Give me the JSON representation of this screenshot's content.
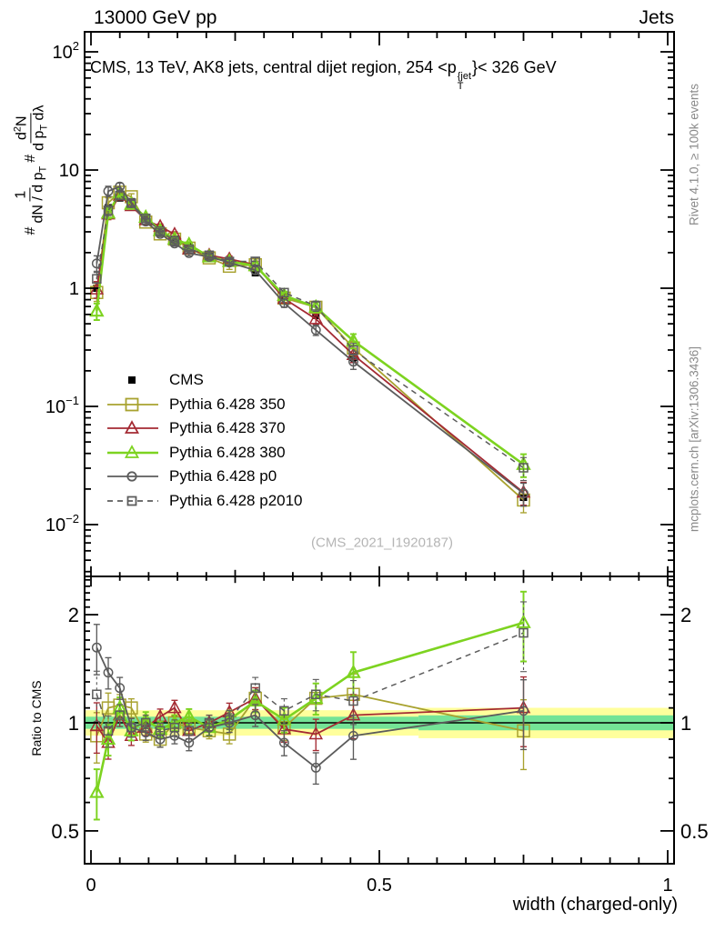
{
  "header": {
    "left": "13000 GeV pp",
    "right": "Jets"
  },
  "title": {
    "prefix": "CMS, 13 TeV, AK8 jets, central dijet region, 254 <p",
    "sup": "{jet",
    "sub": "T",
    "suffix": "}< 326 GeV"
  },
  "ylabel": {
    "h1": "#",
    "f1num": "1",
    "f1den_a": "dN / d p",
    "f1den_sub": "T",
    "h2": "#",
    "f2num_a": "d",
    "f2num_sup": "2",
    "f2num_b": "N",
    "f2den_a": "d p",
    "f2den_sub": "T",
    "f2den_b": " dλ"
  },
  "axes": {
    "xlabel": "width (charged-only)",
    "ratio_ylabel": "Ratio to CMS",
    "xticks": [
      {
        "label": "0",
        "value": 0
      },
      {
        "label": "0.5",
        "value": 0.5
      },
      {
        "label": "1",
        "value": 1
      }
    ],
    "main_yticks": [
      {
        "base": "10",
        "exp": "2",
        "value": 100
      },
      {
        "base": "10",
        "exp": "",
        "value": 10
      },
      {
        "base": "1",
        "exp": "",
        "value": 1
      },
      {
        "base": "10",
        "exp": "−1",
        "value": 0.1
      },
      {
        "base": "10",
        "exp": "−2",
        "value": 0.01
      }
    ],
    "ratio_yticks": [
      {
        "label": "2",
        "value": 2
      },
      {
        "label": "1",
        "value": 1
      },
      {
        "label": "0.5",
        "value": 0.5
      }
    ]
  },
  "sidebar_right": {
    "top": "Rivet 4.1.0, ≥ 100k events",
    "bottom": "mcplots.cern.ch [arXiv:1306.3436]"
  },
  "watermark": "(CMS_2021_I1920187)",
  "legend": [
    {
      "label": "CMS",
      "color": "#000000",
      "marker": "filled-square",
      "line": "none"
    },
    {
      "label": "Pythia 6.428 350",
      "color": "#a8a22f",
      "marker": "open-square",
      "line": "solid"
    },
    {
      "label": "Pythia 6.428 370",
      "color": "#a42a33",
      "marker": "open-triangle",
      "line": "solid"
    },
    {
      "label": "Pythia 6.428 380",
      "color": "#7dd320",
      "marker": "open-triangle",
      "line": "solid"
    },
    {
      "label": "Pythia 6.428 p0",
      "color": "#5c5c5c",
      "marker": "open-circle",
      "line": "solid"
    },
    {
      "label": "Pythia 6.428 p2010",
      "color": "#5c5c5c",
      "marker": "open-square-small",
      "line": "dashed"
    }
  ],
  "chart_data": {
    "type": "line",
    "x": [
      0.01,
      0.03,
      0.05,
      0.07,
      0.095,
      0.12,
      0.145,
      0.17,
      0.205,
      0.24,
      0.285,
      0.335,
      0.39,
      0.455,
      0.75
    ],
    "x_range": [
      -0.011,
      1.011
    ],
    "xlabel": "width (charged-only)",
    "main_panel": {
      "y_scale": "log",
      "y_range": [
        0.0036,
        147
      ],
      "cms_values": [
        1.0,
        4.8,
        5.8,
        5.4,
        3.9,
        3.2,
        2.6,
        2.25,
        1.9,
        1.65,
        1.35,
        0.85,
        0.59,
        0.26,
        0.017
      ],
      "cms_rel_err": [
        0.05,
        0.04,
        0.03,
        0.03,
        0.03,
        0.03,
        0.03,
        0.03,
        0.03,
        0.03,
        0.04,
        0.05,
        0.06,
        0.08,
        0.15
      ],
      "model_rel_err": [
        0.16,
        0.1,
        0.07,
        0.06,
        0.05,
        0.05,
        0.05,
        0.05,
        0.05,
        0.06,
        0.07,
        0.08,
        0.1,
        0.14,
        0.22
      ],
      "series": [
        {
          "name": "Pythia 6.428 350",
          "color": "#a8a22f",
          "marker": "open-square",
          "line": "solid",
          "width": 1.8,
          "ratio_to_cms": [
            0.92,
            1.1,
            1.12,
            1.1,
            0.93,
            0.9,
            1.0,
            0.97,
            0.95,
            0.93,
            1.17,
            0.97,
            1.17,
            1.2,
            0.95
          ]
        },
        {
          "name": "Pythia 6.428 370",
          "color": "#a42a33",
          "marker": "open-triangle",
          "line": "solid",
          "width": 1.8,
          "ratio_to_cms": [
            0.98,
            0.88,
            1.05,
            0.92,
            0.97,
            1.04,
            1.1,
            0.95,
            1.0,
            1.07,
            1.17,
            0.96,
            0.93,
            1.05,
            1.1
          ]
        },
        {
          "name": "Pythia 6.428 380",
          "color": "#7dd320",
          "marker": "open-triangle",
          "line": "solid",
          "width": 2.6,
          "ratio_to_cms": [
            0.64,
            0.9,
            1.1,
            0.95,
            1.02,
            0.96,
            1.0,
            1.04,
            0.97,
            1.02,
            1.15,
            1.02,
            1.17,
            1.38,
            1.9
          ]
        },
        {
          "name": "Pythia 6.428 p0",
          "color": "#5c5c5c",
          "marker": "open-circle",
          "line": "solid",
          "width": 1.8,
          "ratio_to_cms": [
            1.62,
            1.38,
            1.25,
            0.97,
            0.94,
            0.9,
            0.92,
            0.88,
            0.97,
            1.0,
            1.05,
            0.88,
            0.75,
            0.92,
            1.08
          ]
        },
        {
          "name": "Pythia 6.428 p2010",
          "color": "#5c5c5c",
          "marker": "open-square-small",
          "line": "dashed",
          "width": 1.5,
          "ratio_to_cms": [
            1.2,
            0.95,
            1.05,
            0.97,
            1.0,
            0.95,
            0.97,
            0.95,
            1.0,
            1.02,
            1.25,
            1.08,
            1.2,
            1.15,
            1.78
          ]
        }
      ]
    },
    "ratio_panel": {
      "y_scale": "log",
      "y_range": [
        0.406,
        2.55
      ],
      "reference": 1,
      "bands": [
        {
          "x0": -0.011,
          "x1": 0.568,
          "lo": 0.921,
          "hi": 1.084,
          "color": "#ffff9c"
        },
        {
          "x0": 0.568,
          "x1": 1.011,
          "lo": 0.906,
          "hi": 1.101,
          "color": "#ffff9c"
        },
        {
          "x0": -0.011,
          "x1": 0.568,
          "lo": 0.962,
          "hi": 1.04,
          "color": "#74e396"
        },
        {
          "x0": 0.568,
          "x1": 1.011,
          "lo": 0.953,
          "hi": 1.049,
          "color": "#74e396"
        }
      ]
    }
  }
}
